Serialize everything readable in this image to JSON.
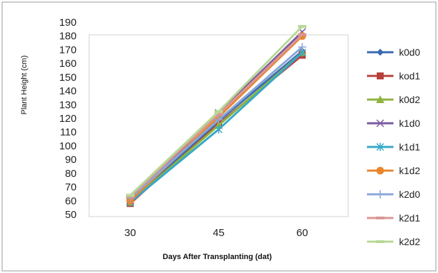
{
  "chart_data": {
    "type": "line",
    "xlabel": "Days After Transplanting (dat)",
    "ylabel": "Plant Height (cm)",
    "categories": [
      "30",
      "45",
      "60"
    ],
    "ylim": [
      50,
      190
    ],
    "ytick_step": 10,
    "grid": false,
    "legend_position": "right",
    "series": [
      {
        "name": "k0d0",
        "values": [
          59,
          118,
          169
        ],
        "color": "#3a6ab0",
        "marker": "diamond"
      },
      {
        "name": "kod1",
        "values": [
          58,
          116,
          166
        ],
        "color": "#b8403c",
        "marker": "square"
      },
      {
        "name": "k0d2",
        "values": [
          59,
          115,
          168
        ],
        "color": "#8eb33e",
        "marker": "triangle"
      },
      {
        "name": "k1d0",
        "values": [
          60,
          124,
          183
        ],
        "color": "#7a5aa0",
        "marker": "x"
      },
      {
        "name": "k1d1",
        "values": [
          59,
          112,
          168
        ],
        "color": "#37a8c6",
        "marker": "asterisk"
      },
      {
        "name": "k1d2",
        "values": [
          60,
          121,
          180
        ],
        "color": "#e8862e",
        "marker": "circle"
      },
      {
        "name": "k2d0",
        "values": [
          62,
          119,
          172
        ],
        "color": "#8aa7d8",
        "marker": "plus"
      },
      {
        "name": "k2d1",
        "values": [
          63,
          123,
          181
        ],
        "color": "#d99693",
        "marker": "dash"
      },
      {
        "name": "k2d2",
        "values": [
          64,
          125,
          187
        ],
        "color": "#b8d896",
        "marker": "dash"
      }
    ]
  }
}
